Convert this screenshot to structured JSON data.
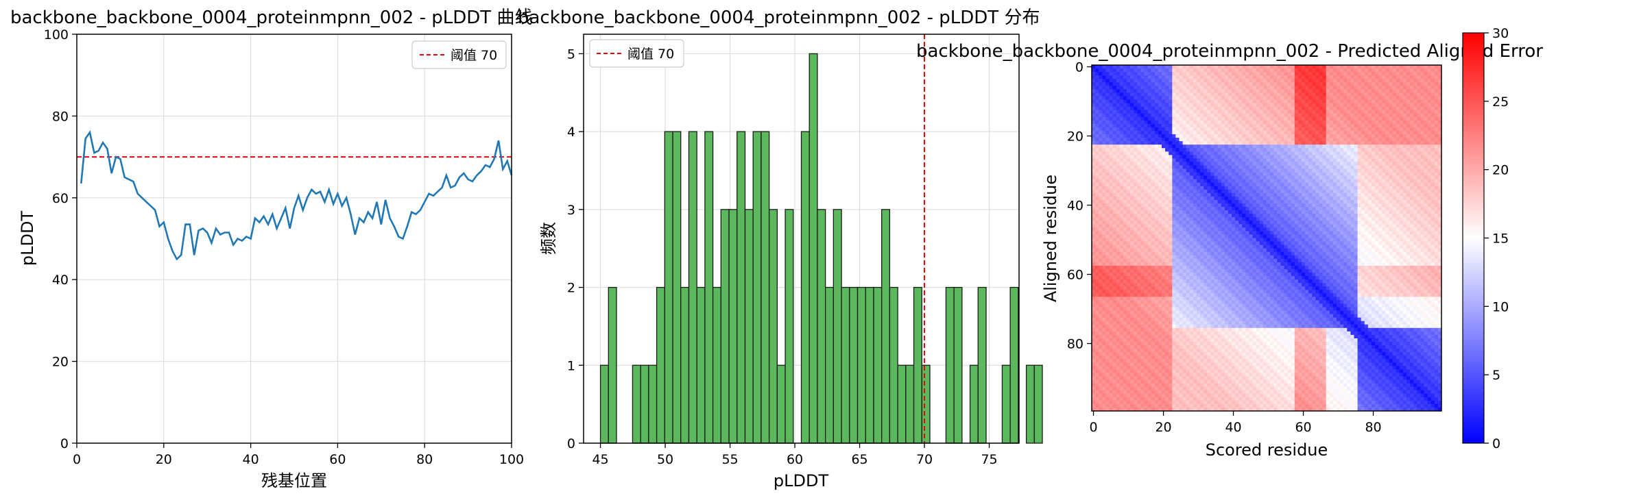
{
  "colors": {
    "line": "#1f77b4",
    "hist_fill": "#5cb85c",
    "hist_edge": "#1a1a1a",
    "threshold": "#e8000b",
    "grid": "#d9d9d9"
  },
  "chart_data": [
    {
      "type": "line",
      "title": "backbone_backbone_0004_proteinmpnn_002 - pLDDT 曲线",
      "xlabel": "残基位置",
      "ylabel": "pLDDT",
      "xlim": [
        0,
        100
      ],
      "ylim": [
        0,
        100
      ],
      "xticks": [
        0,
        20,
        40,
        60,
        80,
        100
      ],
      "yticks": [
        0,
        20,
        40,
        60,
        80,
        100
      ],
      "grid": true,
      "legend": {
        "position": "top-right",
        "label": "阈值 70"
      },
      "threshold": 70,
      "x": [
        1,
        2,
        3,
        4,
        5,
        6,
        7,
        8,
        9,
        10,
        11,
        12,
        13,
        14,
        15,
        16,
        17,
        18,
        19,
        20,
        21,
        22,
        23,
        24,
        25,
        26,
        27,
        28,
        29,
        30,
        31,
        32,
        33,
        34,
        35,
        36,
        37,
        38,
        39,
        40,
        41,
        42,
        43,
        44,
        45,
        46,
        47,
        48,
        49,
        50,
        51,
        52,
        53,
        54,
        55,
        56,
        57,
        58,
        59,
        60,
        61,
        62,
        63,
        64,
        65,
        66,
        67,
        68,
        69,
        70,
        71,
        72,
        73,
        74,
        75,
        76,
        77,
        78,
        79,
        80,
        81,
        82,
        83,
        84,
        85,
        86,
        87,
        88,
        89,
        90,
        91,
        92,
        93,
        94,
        95,
        96,
        97,
        98,
        99,
        100
      ],
      "y": [
        63.5,
        74.5,
        76.0,
        71.0,
        71.5,
        73.5,
        72.0,
        66.0,
        70.0,
        69.5,
        65.0,
        64.5,
        64.0,
        61.0,
        60.0,
        59.0,
        58.0,
        57.0,
        53.0,
        54.0,
        50.0,
        47.0,
        45.0,
        46.0,
        53.5,
        53.5,
        46.0,
        52.0,
        52.5,
        51.5,
        49.0,
        52.5,
        51.0,
        51.5,
        51.5,
        48.5,
        50.0,
        49.5,
        50.5,
        50.0,
        55.0,
        54.0,
        55.5,
        53.5,
        56.0,
        52.5,
        55.0,
        57.5,
        52.5,
        57.5,
        60.5,
        57.0,
        60.0,
        62.0,
        61.0,
        61.5,
        59.0,
        62.0,
        58.5,
        61.0,
        58.0,
        60.0,
        56.0,
        51.0,
        55.0,
        54.0,
        56.5,
        55.0,
        59.0,
        53.5,
        59.5,
        55.0,
        53.0,
        50.5,
        50.0,
        53.0,
        56.5,
        56.0,
        57.0,
        59.0,
        61.0,
        60.5,
        61.5,
        62.5,
        65.5,
        62.5,
        63.0,
        65.0,
        66.0,
        64.5,
        64.0,
        65.5,
        66.5,
        68.0,
        67.5,
        69.5,
        74.0,
        67.0,
        69.0,
        65.5
      ]
    },
    {
      "type": "bar",
      "title": "backbone_backbone_0004_proteinmpnn_002 - pLDDT 分布",
      "xlabel": "pLDDT",
      "ylabel": "频数",
      "xlim": [
        43.7,
        77.3
      ],
      "ylim": [
        0,
        5.25
      ],
      "xticks": [
        45,
        50,
        55,
        60,
        65,
        70,
        75
      ],
      "yticks": [
        0,
        1,
        2,
        3,
        4,
        5
      ],
      "grid": true,
      "legend": {
        "position": "top-left",
        "label": "阈值 70"
      },
      "threshold": 70,
      "bin_start": 45.0,
      "bin_width": 0.62,
      "values": [
        1,
        2,
        0,
        0,
        1,
        1,
        1,
        2,
        4,
        4,
        2,
        4,
        2,
        4,
        2,
        3,
        3,
        4,
        3,
        4,
        4,
        3,
        1,
        3,
        0,
        4,
        5,
        3,
        2,
        3,
        2,
        2,
        2,
        2,
        2,
        3,
        2,
        1,
        1,
        2,
        1,
        0,
        0,
        2,
        2,
        0,
        1,
        2,
        0,
        0,
        1,
        2,
        0,
        1,
        1
      ]
    },
    {
      "type": "heatmap",
      "title": "backbone_backbone_0004_proteinmpnn_002 - Predicted Aligned Error",
      "xlabel": "Scored residue",
      "ylabel": "Aligned residue",
      "size": 100,
      "xticks": [
        0,
        20,
        40,
        60,
        80
      ],
      "yticks": [
        0,
        20,
        40,
        60,
        80
      ],
      "colorbar": {
        "min": 0,
        "max": 30,
        "ticks": [
          0,
          5,
          10,
          15,
          20,
          25,
          30
        ],
        "colormap": "bwr"
      },
      "domains": [
        [
          0,
          22
        ],
        [
          23,
          75
        ],
        [
          76,
          99
        ]
      ]
    }
  ]
}
